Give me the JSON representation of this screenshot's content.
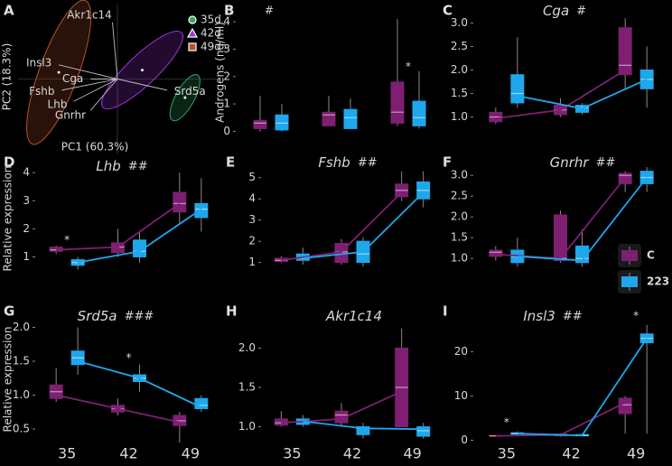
{
  "chart_data": [
    {
      "type": "biplot",
      "letter": "A",
      "xlabel": "PC1 (60.3%)",
      "ylabel": "PC2 (18.3%)",
      "xlim": [
        -1,
        1
      ],
      "ylim": [
        -1,
        1
      ],
      "groups": [
        {
          "name": "35d",
          "color": "#2fa866",
          "marker": "circle",
          "center": [
            0.68,
            -0.25
          ],
          "radii": [
            0.33,
            0.1
          ],
          "angle": 69
        },
        {
          "name": "42d",
          "color": "#9b33d6",
          "marker": "triangle",
          "center": [
            0.25,
            0.12
          ],
          "radii": [
            0.64,
            0.17
          ],
          "angle": 53
        },
        {
          "name": "49d",
          "color": "#b5522e",
          "marker": "square",
          "center": [
            -0.59,
            0.09
          ],
          "radii": [
            1.0,
            0.2
          ],
          "angle": 75
        }
      ],
      "loadings": [
        {
          "name": "Akr1c14",
          "x": -0.05,
          "y": 0.76
        },
        {
          "name": "Insl3",
          "x": -0.59,
          "y": 0.19
        },
        {
          "name": "Cga",
          "x": -0.27,
          "y": 0
        },
        {
          "name": "Fshb",
          "x": -0.56,
          "y": -0.15
        },
        {
          "name": "Lhb",
          "x": -0.44,
          "y": -0.3
        },
        {
          "name": "Gnrhr",
          "x": -0.27,
          "y": -0.42
        },
        {
          "name": "Srd5a",
          "x": 0.5,
          "y": -0.15
        }
      ]
    },
    {
      "type": "box",
      "letter": "B",
      "mark": "#",
      "ylabel": "Androgens (ng/ml)",
      "ylim": [
        -0.15,
        4.3
      ],
      "yticks": [
        0,
        1,
        2,
        3,
        4
      ],
      "series": [
        {
          "color": "#7e1f72",
          "boxes": [
            [
              0,
              0.1,
              0.3,
              0.4,
              1.3
            ],
            [
              0.2,
              0.2,
              0.6,
              0.7,
              1.3
            ],
            [
              0.2,
              0.3,
              0.7,
              1.8,
              4.1
            ]
          ]
        },
        {
          "color": "#1ea7ec",
          "boxes": [
            [
              0,
              0.05,
              0.3,
              0.6,
              1.0
            ],
            [
              0.1,
              0.1,
              0.5,
              0.8,
              1.2
            ],
            [
              0.1,
              0.2,
              0.5,
              1.1,
              2.2
            ]
          ]
        }
      ],
      "annotations": [
        {
          "text": "*",
          "group": 2,
          "y": 2.35
        }
      ]
    },
    {
      "type": "box",
      "letter": "C",
      "title": "Cga",
      "mark": "#",
      "ylim": [
        0.8,
        3.2
      ],
      "yticks": [
        {
          "value": 1,
          "label": "1.0"
        },
        1.5,
        {
          "value": 2,
          "label": "2.0"
        },
        2.5,
        {
          "value": 3,
          "label": "3.0"
        }
      ],
      "series": [
        {
          "color": "#7e1f72",
          "boxes": [
            [
              0.85,
              0.9,
              1.0,
              1.1,
              1.2
            ],
            [
              1.0,
              1.05,
              1.15,
              1.25,
              1.4
            ],
            [
              1.6,
              1.9,
              2.1,
              2.9,
              3.1
            ]
          ],
          "mean": [
            0.97,
            1.15,
            2.0
          ]
        },
        {
          "color": "#1ea7ec",
          "boxes": [
            [
              1.2,
              1.3,
              1.5,
              1.9,
              2.7
            ],
            [
              1.05,
              1.1,
              1.2,
              1.25,
              1.3
            ],
            [
              1.2,
              1.6,
              1.8,
              2.0,
              2.5
            ]
          ],
          "mean": [
            1.45,
            1.18,
            1.8
          ]
        }
      ]
    },
    {
      "type": "box",
      "letter": "D",
      "title": "Lhb",
      "mark": "##",
      "ylabel": "Relative expression",
      "ylim": [
        0.5,
        4.2
      ],
      "yticks": [
        1,
        2,
        3,
        4
      ],
      "series": [
        {
          "color": "#7e1f72",
          "boxes": [
            [
              1.1,
              1.2,
              1.25,
              1.35,
              1.4
            ],
            [
              1.0,
              1.15,
              1.35,
              1.5,
              2.0
            ],
            [
              2.2,
              2.6,
              2.9,
              3.3,
              4.0
            ]
          ],
          "mean": [
            1.25,
            1.35,
            2.9
          ]
        },
        {
          "color": "#1ea7ec",
          "boxes": [
            [
              0.55,
              0.7,
              0.8,
              0.9,
              1.0
            ],
            [
              0.8,
              1.0,
              1.2,
              1.6,
              1.9
            ],
            [
              1.9,
              2.4,
              2.7,
              2.9,
              3.8
            ]
          ],
          "mean": [
            0.8,
            1.2,
            2.7
          ]
        }
      ],
      "annotations": [
        {
          "text": "*",
          "group": 0,
          "y": 1.6
        }
      ]
    },
    {
      "type": "box",
      "letter": "E",
      "title": "Fshb",
      "mark": "##",
      "ylim": [
        0.6,
        5.5
      ],
      "yticks": [
        1,
        2,
        3,
        4,
        5
      ],
      "series": [
        {
          "color": "#7e1f72",
          "boxes": [
            [
              1.0,
              1.05,
              1.1,
              1.2,
              1.3
            ],
            [
              0.9,
              1.0,
              1.5,
              1.9,
              2.1
            ],
            [
              3.9,
              4.1,
              4.4,
              4.7,
              5.3
            ]
          ],
          "mean": [
            1.1,
            1.5,
            4.3
          ]
        },
        {
          "color": "#1ea7ec",
          "boxes": [
            [
              0.9,
              1.1,
              1.2,
              1.4,
              1.7
            ],
            [
              0.8,
              1.0,
              1.4,
              2.0,
              2.2
            ],
            [
              3.6,
              4.0,
              4.4,
              4.8,
              5.3
            ]
          ],
          "mean": [
            1.2,
            1.5,
            4.3
          ]
        }
      ]
    },
    {
      "type": "box",
      "letter": "F",
      "title": "Gnrhr",
      "mark": "##",
      "ylim": [
        0.7,
        3.2
      ],
      "yticks": [
        {
          "value": 1,
          "label": "1.0"
        },
        1.5,
        {
          "value": 2,
          "label": "2.0"
        },
        2.5,
        {
          "value": 3,
          "label": "3.0"
        }
      ],
      "legend": "right",
      "series": [
        {
          "name": "C",
          "color": "#7e1f72",
          "boxes": [
            [
              0.95,
              1.05,
              1.15,
              1.2,
              1.3
            ],
            [
              0.9,
              0.95,
              1.0,
              2.05,
              2.15
            ],
            [
              2.6,
              2.8,
              3.0,
              3.05,
              3.1
            ]
          ],
          "mean": [
            1.1,
            1.0,
            2.95
          ]
        },
        {
          "name": "223",
          "color": "#1ea7ec",
          "boxes": [
            [
              0.8,
              0.9,
              1.05,
              1.2,
              1.5
            ],
            [
              0.8,
              0.9,
              1.0,
              1.3,
              1.7
            ],
            [
              2.6,
              2.8,
              2.95,
              3.1,
              3.2
            ]
          ],
          "mean": [
            1.05,
            0.95,
            2.95
          ]
        }
      ]
    },
    {
      "type": "box",
      "letter": "G",
      "title": "Srd5a",
      "mark": "###",
      "ylabel": "Relative expression",
      "ylim": [
        0.3,
        2.1
      ],
      "yticks": [
        0.5,
        {
          "value": 1,
          "label": "1.0"
        },
        1.5,
        {
          "value": 2,
          "label": "2.0"
        }
      ],
      "categories": [
        "35",
        "42",
        "49"
      ],
      "series": [
        {
          "color": "#7e1f72",
          "boxes": [
            [
              0.9,
              0.95,
              1.05,
              1.15,
              1.4
            ],
            [
              0.7,
              0.75,
              0.8,
              0.85,
              0.95
            ],
            [
              0.3,
              0.55,
              0.62,
              0.7,
              0.75
            ]
          ],
          "mean": [
            1.0,
            0.8,
            0.6
          ]
        },
        {
          "color": "#1ea7ec",
          "boxes": [
            [
              1.3,
              1.45,
              1.55,
              1.65,
              2.0
            ],
            [
              1.05,
              1.2,
              1.25,
              1.3,
              1.45
            ],
            [
              0.75,
              0.8,
              0.85,
              0.95,
              1.0
            ]
          ],
          "mean": [
            1.5,
            1.25,
            0.82
          ]
        }
      ],
      "annotations": [
        {
          "text": "*",
          "group": 1,
          "y": 1.55
        }
      ]
    },
    {
      "type": "box",
      "letter": "H",
      "title": "Akr1c14",
      "ylim": [
        0.8,
        2.35
      ],
      "yticks": [
        {
          "value": 1,
          "label": "1.0"
        },
        1.5,
        {
          "value": 2,
          "label": "2.0"
        }
      ],
      "categories": [
        "35",
        "42",
        "49"
      ],
      "series": [
        {
          "color": "#7e1f72",
          "boxes": [
            [
              1.0,
              1.02,
              1.05,
              1.1,
              1.2
            ],
            [
              1.0,
              1.05,
              1.15,
              1.2,
              1.3
            ],
            [
              1.0,
              1.0,
              1.5,
              2.0,
              2.25
            ]
          ],
          "mean": [
            1.05,
            1.1,
            1.45
          ]
        },
        {
          "color": "#1ea7ec",
          "boxes": [
            [
              1.0,
              1.03,
              1.07,
              1.1,
              1.15
            ],
            [
              0.85,
              0.9,
              0.98,
              1.0,
              1.05
            ],
            [
              0.85,
              0.88,
              0.95,
              1.0,
              1.05
            ]
          ],
          "mean": [
            1.07,
            0.98,
            0.97
          ]
        }
      ]
    },
    {
      "type": "box",
      "letter": "I",
      "title": "Insl3",
      "mark": "##",
      "ylim": [
        -0.5,
        27
      ],
      "yticks": [
        0,
        10,
        20
      ],
      "categories": [
        "35",
        "42",
        "49"
      ],
      "series": [
        {
          "color": "#7e1f72",
          "boxes": [
            [
              0.8,
              0.9,
              1.0,
              1.1,
              1.2
            ],
            [
              0.8,
              1.0,
              1.2,
              1.4,
              1.6
            ],
            [
              1.5,
              6,
              8,
              9.5,
              10
            ]
          ],
          "mean": [
            1.0,
            1.2,
            8.5
          ]
        },
        {
          "color": "#1ea7ec",
          "boxes": [
            [
              1.2,
              1.4,
              1.5,
              1.7,
              2.0
            ],
            [
              0.9,
              1.0,
              1.1,
              1.3,
              1.5
            ],
            [
              1.5,
              22,
              23,
              24,
              26
            ]
          ],
          "mean": [
            1.5,
            1.1,
            23
          ]
        }
      ],
      "annotations": [
        {
          "text": "*",
          "group": 0,
          "y": 4
        },
        {
          "text": "*",
          "group": 2,
          "y": 28
        }
      ]
    }
  ]
}
